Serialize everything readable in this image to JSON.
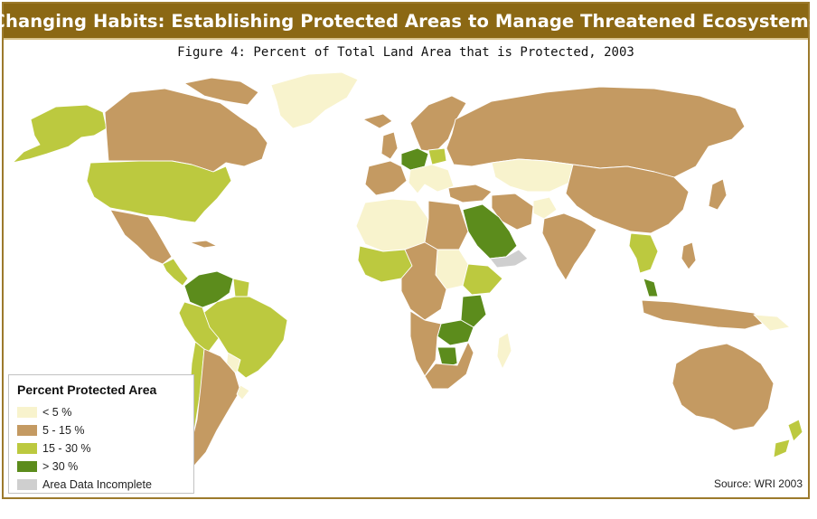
{
  "header": {
    "title": "Changing Habits: Establishing Protected Areas to Manage Threatened Ecosystems",
    "subtitle": "Figure 4: Percent of Total Land Area that is Protected, 2003"
  },
  "legend": {
    "title": "Percent Protected Area",
    "items": [
      {
        "label": "< 5 %",
        "color": "#f8f3cd"
      },
      {
        "label": "5 - 15 %",
        "color": "#c49a62"
      },
      {
        "label": "15 - 30 %",
        "color": "#bcc93f"
      },
      {
        "label": "> 30 %",
        "color": "#5c8c1c"
      },
      {
        "label": "Area Data Incomplete",
        "color": "#cfcfcf"
      }
    ]
  },
  "source": "Source: WRI 2003",
  "colors": {
    "title_bar": "#8b6814",
    "frame_border": "#9c7a2c",
    "country_border": "#ffffff"
  }
}
